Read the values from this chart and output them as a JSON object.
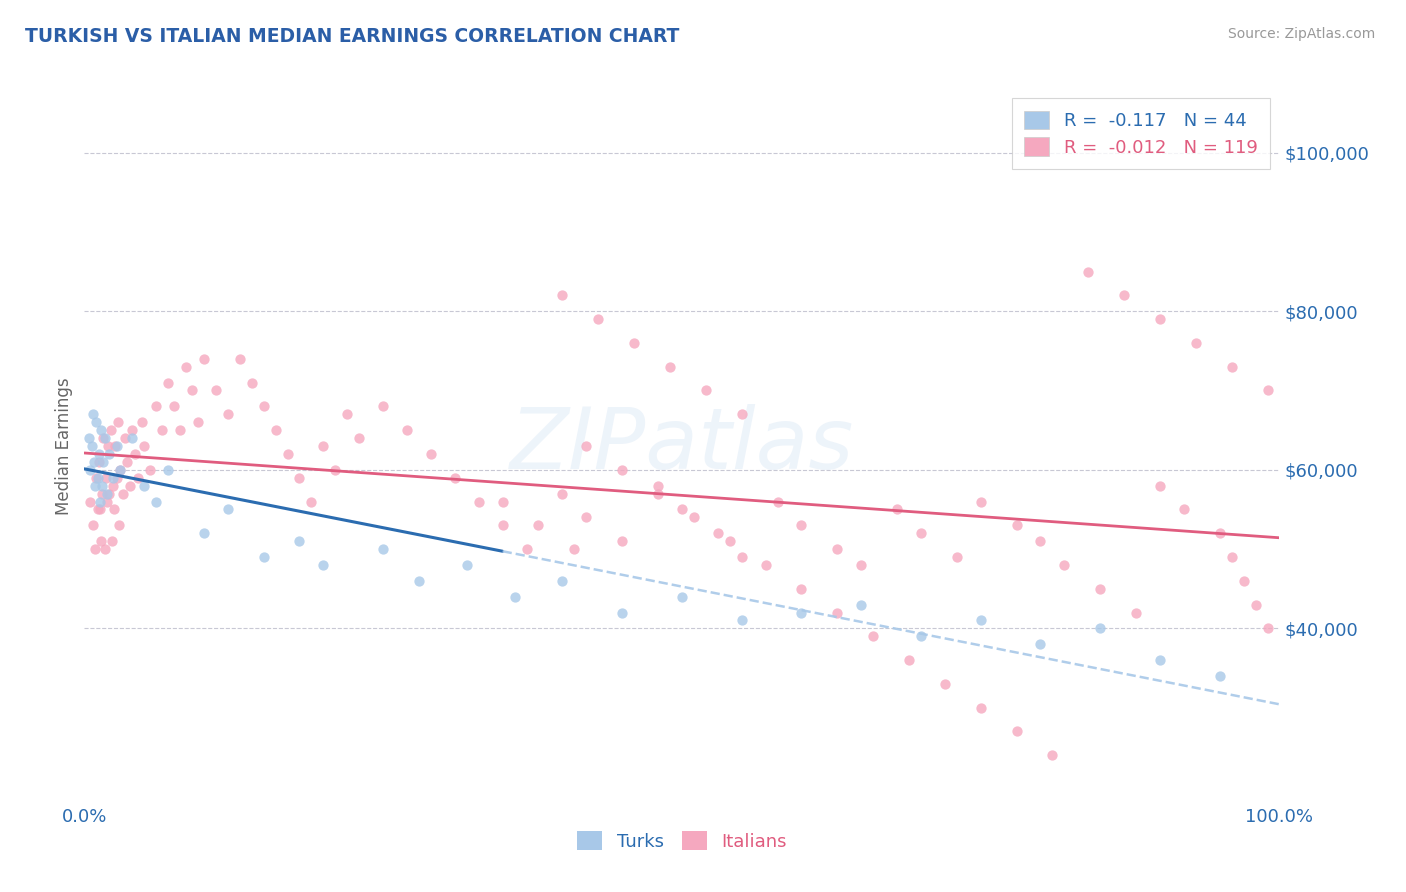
{
  "title": "TURKISH VS ITALIAN MEDIAN EARNINGS CORRELATION CHART",
  "source": "Source: ZipAtlas.com",
  "ylabel": "Median Earnings",
  "x_min": 0.0,
  "x_max": 1.0,
  "y_min": 18000,
  "y_max": 108000,
  "y_ticks": [
    40000,
    60000,
    80000,
    100000
  ],
  "y_tick_labels": [
    "$40,000",
    "$60,000",
    "$80,000",
    "$100,000"
  ],
  "x_ticks": [
    0.0,
    1.0
  ],
  "x_tick_labels": [
    "0.0%",
    "100.0%"
  ],
  "turks_color": "#a8c8e8",
  "italians_color": "#f5a8bf",
  "turks_line_color": "#2b6cb0",
  "italians_line_color": "#e05c7f",
  "turks_dash_color": "#a8c8e8",
  "grid_color": "#c8c8d4",
  "title_color": "#2b5ea7",
  "tick_label_color": "#2b6cb0",
  "watermark_color": "#a8c8e8",
  "background_color": "#ffffff",
  "legend_turks_label": "R =  -0.117   N = 44",
  "legend_italians_label": "R =  -0.012   N = 119",
  "watermark": "ZIPatlas",
  "turks_x": [
    0.004,
    0.005,
    0.006,
    0.007,
    0.008,
    0.009,
    0.01,
    0.011,
    0.012,
    0.013,
    0.014,
    0.015,
    0.016,
    0.017,
    0.019,
    0.021,
    0.024,
    0.027,
    0.03,
    0.04,
    0.05,
    0.06,
    0.07,
    0.1,
    0.12,
    0.15,
    0.18,
    0.2,
    0.25,
    0.28,
    0.32,
    0.36,
    0.4,
    0.45,
    0.5,
    0.55,
    0.6,
    0.65,
    0.7,
    0.75,
    0.8,
    0.85,
    0.9,
    0.95
  ],
  "turks_y": [
    64000,
    60000,
    63000,
    67000,
    61000,
    58000,
    66000,
    59000,
    62000,
    56000,
    65000,
    58000,
    61000,
    64000,
    57000,
    62000,
    59000,
    63000,
    60000,
    64000,
    58000,
    56000,
    60000,
    52000,
    55000,
    49000,
    51000,
    48000,
    50000,
    46000,
    48000,
    44000,
    46000,
    42000,
    44000,
    41000,
    42000,
    43000,
    39000,
    41000,
    38000,
    40000,
    36000,
    34000
  ],
  "italians_x": [
    0.005,
    0.007,
    0.009,
    0.01,
    0.011,
    0.012,
    0.013,
    0.014,
    0.015,
    0.016,
    0.017,
    0.018,
    0.019,
    0.02,
    0.021,
    0.022,
    0.023,
    0.024,
    0.025,
    0.026,
    0.027,
    0.028,
    0.029,
    0.03,
    0.032,
    0.034,
    0.036,
    0.038,
    0.04,
    0.042,
    0.045,
    0.048,
    0.05,
    0.055,
    0.06,
    0.065,
    0.07,
    0.075,
    0.08,
    0.085,
    0.09,
    0.095,
    0.1,
    0.11,
    0.12,
    0.13,
    0.14,
    0.15,
    0.16,
    0.17,
    0.18,
    0.19,
    0.2,
    0.21,
    0.22,
    0.23,
    0.25,
    0.27,
    0.29,
    0.31,
    0.33,
    0.35,
    0.37,
    0.4,
    0.42,
    0.45,
    0.48,
    0.5,
    0.53,
    0.55,
    0.58,
    0.6,
    0.63,
    0.65,
    0.68,
    0.7,
    0.73,
    0.75,
    0.78,
    0.8,
    0.82,
    0.85,
    0.88,
    0.9,
    0.92,
    0.95,
    0.96,
    0.97,
    0.98,
    0.99,
    0.4,
    0.43,
    0.46,
    0.49,
    0.52,
    0.55,
    0.42,
    0.45,
    0.48,
    0.51,
    0.54,
    0.57,
    0.6,
    0.63,
    0.66,
    0.69,
    0.72,
    0.75,
    0.78,
    0.81,
    0.84,
    0.87,
    0.9,
    0.93,
    0.96,
    0.99,
    0.35,
    0.38,
    0.41
  ],
  "italians_y": [
    56000,
    53000,
    50000,
    59000,
    55000,
    61000,
    55000,
    51000,
    57000,
    64000,
    50000,
    59000,
    56000,
    63000,
    57000,
    65000,
    51000,
    58000,
    55000,
    63000,
    59000,
    66000,
    53000,
    60000,
    57000,
    64000,
    61000,
    58000,
    65000,
    62000,
    59000,
    66000,
    63000,
    60000,
    68000,
    65000,
    71000,
    68000,
    65000,
    73000,
    70000,
    66000,
    74000,
    70000,
    67000,
    74000,
    71000,
    68000,
    65000,
    62000,
    59000,
    56000,
    63000,
    60000,
    67000,
    64000,
    68000,
    65000,
    62000,
    59000,
    56000,
    53000,
    50000,
    57000,
    54000,
    51000,
    58000,
    55000,
    52000,
    49000,
    56000,
    53000,
    50000,
    48000,
    55000,
    52000,
    49000,
    56000,
    53000,
    51000,
    48000,
    45000,
    42000,
    58000,
    55000,
    52000,
    49000,
    46000,
    43000,
    40000,
    82000,
    79000,
    76000,
    73000,
    70000,
    67000,
    63000,
    60000,
    57000,
    54000,
    51000,
    48000,
    45000,
    42000,
    39000,
    36000,
    33000,
    30000,
    27000,
    24000,
    85000,
    82000,
    79000,
    76000,
    73000,
    70000,
    56000,
    53000,
    50000
  ]
}
